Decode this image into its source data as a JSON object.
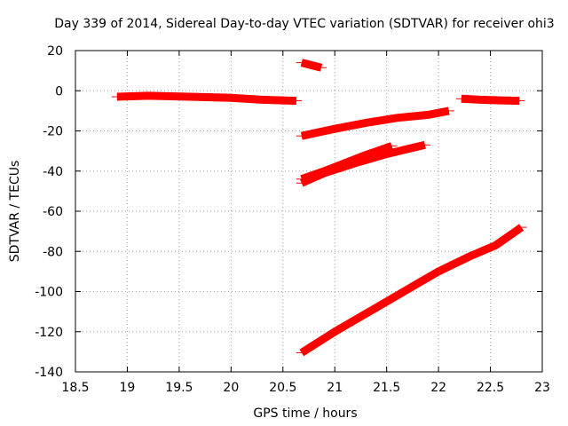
{
  "chart_data": {
    "type": "scatter",
    "title": "Day 339 of 2014, Sidereal Day-to-day VTEC variation (SDTVAR) for receiver ohi3",
    "xlabel": "GPS time / hours",
    "ylabel": "SDTVAR / TECUs",
    "xlim": [
      18.5,
      23
    ],
    "ylim": [
      -140,
      20
    ],
    "x_ticks": [
      18.5,
      19,
      19.5,
      20,
      20.5,
      21,
      21.5,
      22,
      22.5,
      23
    ],
    "y_ticks": [
      -140,
      -120,
      -100,
      -80,
      -60,
      -40,
      -20,
      0,
      20
    ],
    "grid": true,
    "color": "#ff0000",
    "series": [
      {
        "x": [
          18.9,
          19.2,
          19.6,
          20.0,
          20.3,
          20.63
        ],
        "y": [
          -3,
          -2.5,
          -3,
          -3.5,
          -4.5,
          -5
        ]
      },
      {
        "x": [
          20.68,
          20.87
        ],
        "y": [
          14,
          11.5
        ]
      },
      {
        "x": [
          20.68,
          21.0,
          21.3,
          21.6,
          21.9,
          22.1
        ],
        "y": [
          -22.5,
          -19,
          -16,
          -13.5,
          -12,
          -10
        ]
      },
      {
        "x": [
          20.68,
          20.9,
          21.1,
          21.3,
          21.55
        ],
        "y": [
          -44,
          -40,
          -36,
          -32,
          -27.5
        ]
      },
      {
        "x": [
          20.68,
          20.9,
          21.2,
          21.5,
          21.87
        ],
        "y": [
          -46,
          -41,
          -36,
          -31.5,
          -27
        ]
      },
      {
        "x": [
          22.22,
          22.4,
          22.6,
          22.78
        ],
        "y": [
          -4,
          -4.5,
          -4.8,
          -5
        ]
      },
      {
        "x": [
          20.68,
          21.0,
          21.4,
          21.8,
          22.0,
          22.3,
          22.55,
          22.8
        ],
        "y": [
          -130.5,
          -120,
          -108,
          -96,
          -90,
          -82.5,
          -77,
          -68
        ]
      }
    ]
  }
}
